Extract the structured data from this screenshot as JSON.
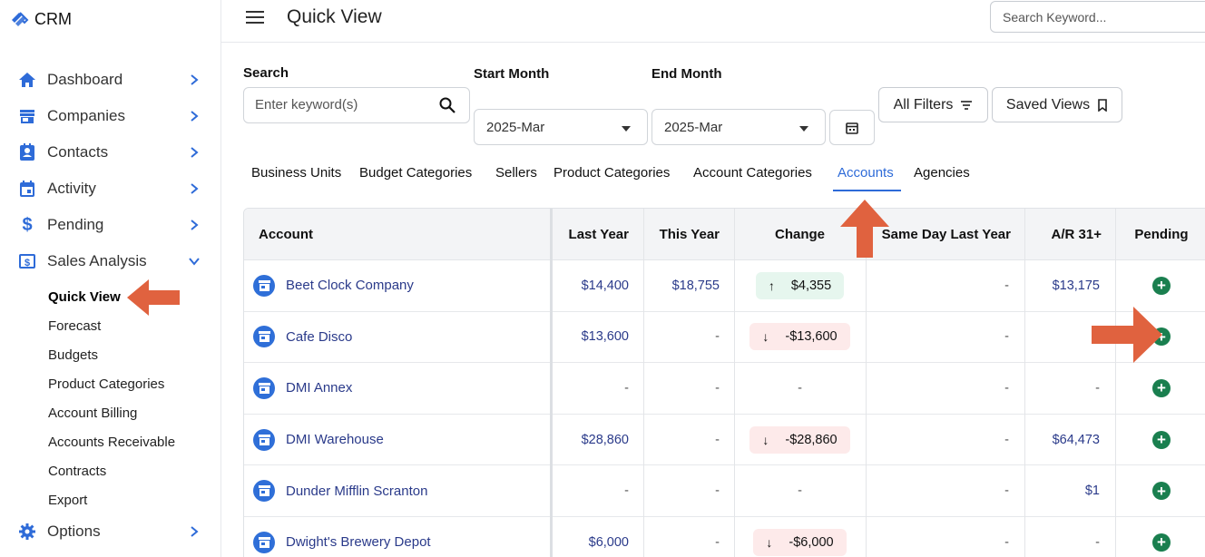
{
  "app": {
    "brand": "CRM"
  },
  "sidebar": {
    "items": [
      {
        "label": "Dashboard",
        "icon": "home-icon"
      },
      {
        "label": "Companies",
        "icon": "store-icon"
      },
      {
        "label": "Contacts",
        "icon": "contact-card-icon"
      },
      {
        "label": "Activity",
        "icon": "calendar-icon"
      },
      {
        "label": "Pending",
        "icon": "dollar-icon"
      },
      {
        "label": "Sales Analysis",
        "icon": "dollar-box-icon",
        "expanded": true
      },
      {
        "label": "Options",
        "icon": "gear-icon"
      }
    ],
    "sales_analysis_sub": [
      {
        "label": "Quick View",
        "active": true
      },
      {
        "label": "Forecast"
      },
      {
        "label": "Budgets"
      },
      {
        "label": "Product Categories"
      },
      {
        "label": "Account Billing"
      },
      {
        "label": "Accounts Receivable"
      },
      {
        "label": "Contracts"
      },
      {
        "label": "Export"
      }
    ]
  },
  "header": {
    "title": "Quick View",
    "search_placeholder": "Search Keyword..."
  },
  "filters": {
    "search_label": "Search",
    "search_placeholder": "Enter keyword(s)",
    "start_label": "Start Month",
    "start_value": "2025-Mar",
    "end_label": "End Month",
    "end_value": "2025-Mar",
    "all_filters": "All Filters",
    "saved_views": "Saved Views"
  },
  "tabs": [
    {
      "label": "Business Units"
    },
    {
      "label": "Budget Categories"
    },
    {
      "label": "Sellers"
    },
    {
      "label": "Product Categories"
    },
    {
      "label": "Account Categories"
    },
    {
      "label": "Accounts",
      "active": true
    },
    {
      "label": "Agencies"
    }
  ],
  "table": {
    "columns": [
      "Account",
      "Last Year",
      "This Year",
      "Change",
      "Same Day Last Year",
      "A/R 31+",
      "Pending"
    ],
    "rows": [
      {
        "account": "Beet Clock Company",
        "last_year": "$14,400",
        "this_year": "$18,755",
        "change": "$4,355",
        "change_dir": "up",
        "same_day": "-",
        "ar": "$13,175"
      },
      {
        "account": "Cafe Disco",
        "last_year": "$13,600",
        "this_year": "-",
        "change": "-$13,600",
        "change_dir": "down",
        "same_day": "-",
        "ar": ""
      },
      {
        "account": "DMI Annex",
        "last_year": "-",
        "this_year": "-",
        "change": "-",
        "change_dir": "none",
        "same_day": "-",
        "ar": "-"
      },
      {
        "account": "DMI Warehouse",
        "last_year": "$28,860",
        "this_year": "-",
        "change": "-$28,860",
        "change_dir": "down",
        "same_day": "-",
        "ar": "$64,473"
      },
      {
        "account": "Dunder Mifflin Scranton",
        "last_year": "-",
        "this_year": "-",
        "change": "-",
        "change_dir": "none",
        "same_day": "-",
        "ar": "$1"
      },
      {
        "account": "Dwight's Brewery Depot",
        "last_year": "$6,000",
        "this_year": "-",
        "change": "-$6,000",
        "change_dir": "down",
        "same_day": "-",
        "ar": "-"
      }
    ]
  },
  "colors": {
    "accent": "#2e6bd8",
    "pending_green": "#1a7f4f",
    "annotation": "#e0623f"
  }
}
